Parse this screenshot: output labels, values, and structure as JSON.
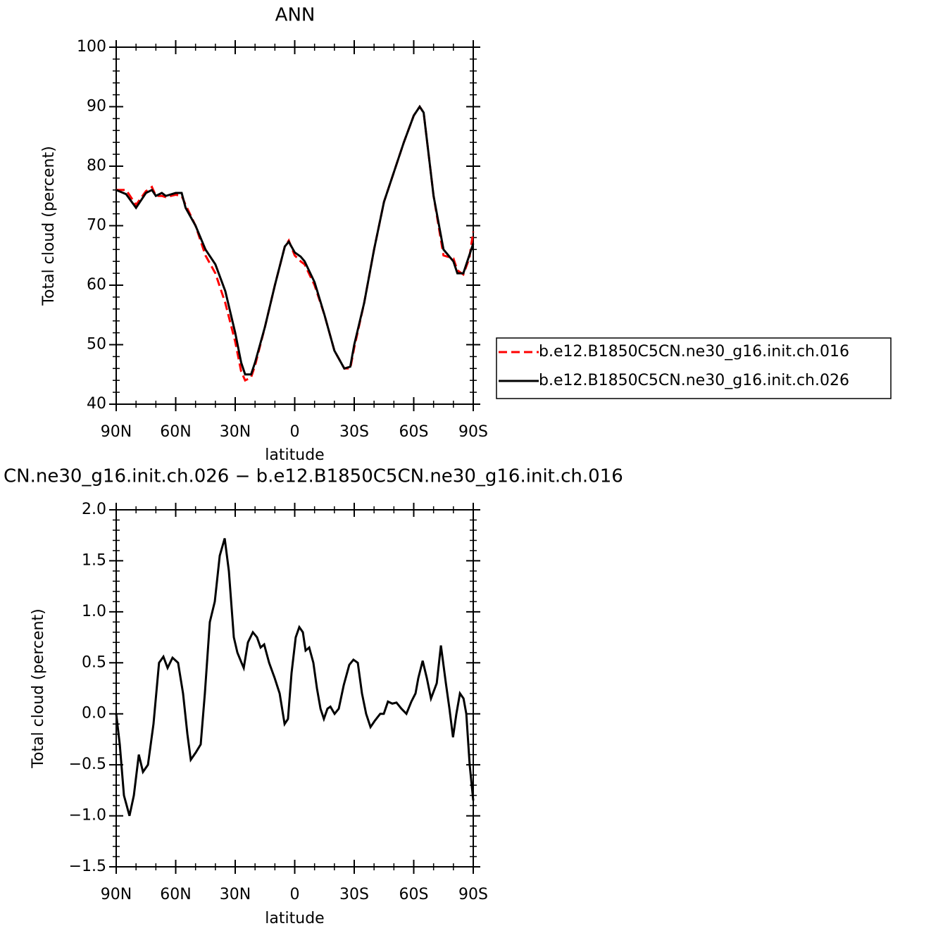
{
  "chart_data": [
    {
      "type": "line",
      "title": "ANN",
      "ylabel": "Total cloud (percent)",
      "xlabel": "latitude",
      "x": [
        90,
        85,
        80,
        75,
        72,
        70,
        67,
        65,
        60,
        57,
        55,
        50,
        45,
        40,
        35,
        30,
        27,
        25,
        22,
        20,
        15,
        10,
        5,
        3,
        0,
        -3,
        -5,
        -10,
        -15,
        -20,
        -25,
        -28,
        -30,
        -35,
        -40,
        -45,
        -50,
        -55,
        -60,
        -63,
        -65,
        -70,
        -75,
        -80,
        -82,
        -85,
        -88,
        -90
      ],
      "series": [
        {
          "name": "b.e12.B1850C5CN.ne30_g16.init.ch.016",
          "color": "#ff0000",
          "linestyle": "dashed",
          "values": [
            76,
            76,
            73.5,
            75.8,
            76.5,
            75,
            75,
            74.8,
            75.2,
            75,
            73.5,
            70,
            65,
            62,
            57,
            50.5,
            45.5,
            44,
            44.5,
            46.5,
            53,
            60,
            66.5,
            67.5,
            65,
            64,
            63.5,
            60,
            55,
            49,
            46,
            46,
            49.5,
            57,
            66,
            74,
            79,
            84,
            88.5,
            90,
            89,
            75,
            65,
            64.5,
            62.5,
            61.8,
            64.5,
            69
          ]
        },
        {
          "name": "b.e12.B1850C5CN.ne30_g16.init.ch.026",
          "color": "#000000",
          "linestyle": "solid",
          "values": [
            76,
            75.3,
            73,
            75.5,
            76,
            75,
            75.5,
            75,
            75.5,
            75.5,
            73,
            70,
            66,
            63.5,
            59,
            52,
            47,
            45,
            45,
            47,
            53,
            60,
            66.5,
            67.3,
            65.5,
            64.8,
            64,
            60.5,
            55,
            49,
            46,
            46.3,
            50,
            57,
            66,
            74,
            79,
            84,
            88.5,
            90,
            89,
            75,
            66,
            64,
            62,
            62,
            65,
            67
          ]
        }
      ],
      "xlim": [
        90,
        -90
      ],
      "xticks": [
        {
          "value": 90,
          "label": "90N"
        },
        {
          "value": 60,
          "label": "60N"
        },
        {
          "value": 30,
          "label": "30N"
        },
        0,
        {
          "value": -30,
          "label": "30S"
        },
        {
          "value": -60,
          "label": "60S"
        },
        {
          "value": -90,
          "label": "90S"
        }
      ],
      "ylim": [
        40,
        100
      ],
      "yticks": [
        40,
        50,
        60,
        70,
        80,
        90,
        100
      ],
      "legend": "right"
    },
    {
      "type": "line",
      "title": "CN.ne30_g16.init.ch.026 − b.e12.B1850C5CN.ne30_g16.init.ch.016",
      "ylabel": "Total cloud (percent)",
      "xlabel": "latitude",
      "x": [
        90,
        88.2,
        86.1,
        83.3,
        81.1,
        78.6,
        76.5,
        74.0,
        71.2,
        68.4,
        66.2,
        64.1,
        61.6,
        58.8,
        56.3,
        54.1,
        52.4,
        49.9,
        47.4,
        45.3,
        42.8,
        40.3,
        37.8,
        35.3,
        33.2,
        30.7,
        28.9,
        26.8,
        25.7,
        23.6,
        21.1,
        19.0,
        17.2,
        15.4,
        12.9,
        10.1,
        7.6,
        5.1,
        3.4,
        1.6,
        -0.5,
        -2.3,
        -4.1,
        -5.5,
        -7.3,
        -9.4,
        -11.2,
        -13.0,
        -14.7,
        -16.5,
        -18.0,
        -20.1,
        -22.2,
        -24.7,
        -27.5,
        -29.6,
        -31.8,
        -33.9,
        -36.0,
        -38.2,
        -40.3,
        -43.1,
        -44.9,
        -47.0,
        -49.2,
        -51.3,
        -53.8,
        -56.3,
        -58.8,
        -60.9,
        -62.3,
        -64.5,
        -66.6,
        -68.7,
        -71.6,
        -73.7,
        -76.2,
        -78.0,
        -79.8,
        -81.5,
        -83.3,
        -85.1,
        -86.5,
        -88.2,
        -90
      ],
      "color": "#000000",
      "values": [
        0.0,
        -0.3,
        -0.8,
        -1.0,
        -0.8,
        -0.4,
        -0.57,
        -0.5,
        -0.1,
        0.5,
        0.56,
        0.45,
        0.55,
        0.5,
        0.2,
        -0.2,
        -0.45,
        -0.38,
        -0.3,
        0.2,
        0.9,
        1.1,
        1.55,
        1.72,
        1.4,
        0.75,
        0.6,
        0.5,
        0.45,
        0.7,
        0.8,
        0.75,
        0.65,
        0.68,
        0.5,
        0.35,
        0.2,
        -0.1,
        -0.05,
        0.4,
        0.75,
        0.85,
        0.8,
        0.62,
        0.65,
        0.5,
        0.25,
        0.05,
        -0.05,
        0.05,
        0.07,
        0.0,
        0.05,
        0.28,
        0.48,
        0.53,
        0.5,
        0.2,
        0.0,
        -0.13,
        -0.07,
        0.0,
        0.0,
        0.12,
        0.1,
        0.11,
        0.05,
        0.0,
        0.12,
        0.2,
        0.35,
        0.52,
        0.35,
        0.15,
        0.3,
        0.67,
        0.3,
        0.05,
        -0.23,
        0.0,
        0.2,
        0.15,
        0.0,
        -0.5,
        -0.85
      ],
      "xlim": [
        90,
        -90
      ],
      "xticks": [
        {
          "value": 90,
          "label": "90N"
        },
        {
          "value": 60,
          "label": "60N"
        },
        {
          "value": 30,
          "label": "30N"
        },
        0,
        {
          "value": -30,
          "label": "30S"
        },
        {
          "value": -60,
          "label": "60S"
        },
        {
          "value": -90,
          "label": "90S"
        }
      ],
      "ylim": [
        -1.5,
        2.0
      ],
      "yticks": [
        {
          "value": -1.5,
          "label": "−1.5"
        },
        {
          "value": -1.0,
          "label": "−1.0"
        },
        {
          "value": -0.5,
          "label": "−0.5"
        },
        {
          "value": 0.0,
          "label": "0.0"
        },
        0.5,
        {
          "value": 1.0,
          "label": "1.0"
        },
        1.5,
        {
          "value": 2.0,
          "label": "2.0"
        }
      ]
    }
  ]
}
